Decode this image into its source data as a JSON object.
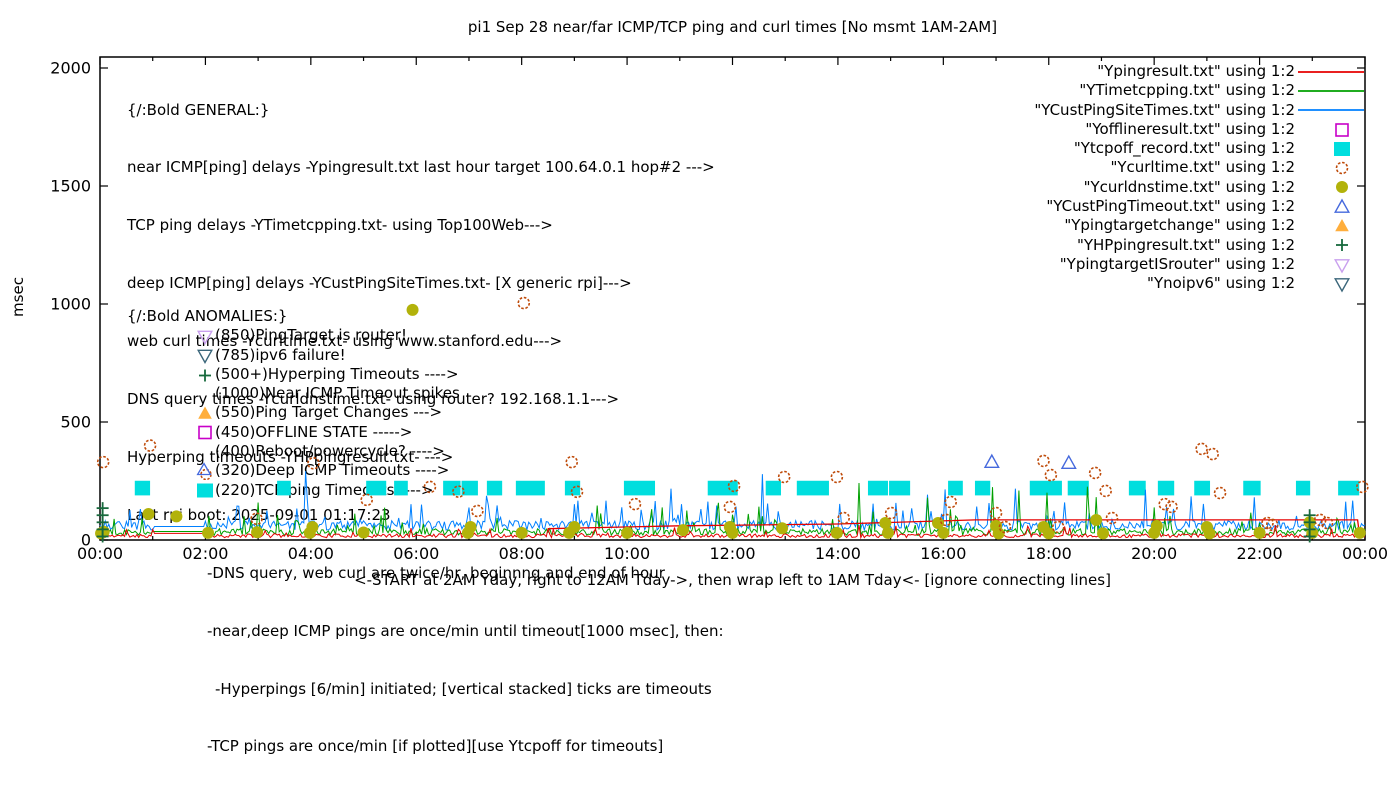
{
  "title": "pi1 Sep 28  near/far ICMP/TCP ping and curl times [No msmt 1AM-2AM]",
  "ylabel": "msec",
  "xlabel": "<-START at 2AM Yday, right to 12AM Tday->, then wrap left to 1AM Tday<- [ignore connecting lines]",
  "colors": {
    "red": "#e60000",
    "green": "#00a000",
    "blue": "#0080ff",
    "magenta": "#c800c8",
    "cyan": "#00dede",
    "burnt_orange": "#bf4b0a",
    "olive": "#b2b20a",
    "royal_blue": "#4569dd",
    "amber": "#ffae3c",
    "dark_green": "#17693c",
    "violet": "#c9a0ee",
    "slate_teal": "#3a667a"
  },
  "legend": {
    "items": [
      {
        "label": "\"Ypingresult.txt\" using 1:2",
        "marker": "line",
        "color": "#e60000"
      },
      {
        "label": "\"YTimetcpping.txt\" using 1:2",
        "marker": "line",
        "color": "#00a000"
      },
      {
        "label": "\"YCustPingSiteTimes.txt\" using 1:2",
        "marker": "line",
        "color": "#0080ff"
      },
      {
        "label": "\"Yofflineresult.txt\" using 1:2",
        "marker": "square-open",
        "color": "#c800c8"
      },
      {
        "label": "\"Ytcpoff_record.txt\" using 1:2",
        "marker": "square-filled",
        "color": "#00dede"
      },
      {
        "label": "\"Ycurltime.txt\" using 1:2",
        "marker": "circle-open",
        "color": "#bf4b0a"
      },
      {
        "label": "\"Ycurldnstime.txt\" using 1:2",
        "marker": "circle-filled",
        "color": "#b2b20a"
      },
      {
        "label": "\"YCustPingTimeout.txt\" using 1:2",
        "marker": "triangle-up-open",
        "color": "#4569dd"
      },
      {
        "label": "\"Ypingtargetchange\" using 1:2",
        "marker": "triangle-up-filled",
        "color": "#ffae3c"
      },
      {
        "label": "\"YHPpingresult.txt\" using 1:2",
        "marker": "plus",
        "color": "#17693c"
      },
      {
        "label": "\"YpingtargetISrouter\" using 1:2",
        "marker": "triangle-down-open",
        "color": "#c9a0ee"
      },
      {
        "label": "\"Ynoipv6\" using 1:2",
        "marker": "triangle-down-open",
        "color": "#3a667a"
      }
    ]
  },
  "annotations": {
    "general": {
      "lines": [
        {
          "text": "{/:Bold GENERAL:}",
          "indent": 0
        },
        {
          "text": "near ICMP[ping] delays -Ypingresult.txt last hour target 100.64.0.1 hop#2 --->",
          "indent": 0
        },
        {
          "text": "TCP ping delays -YTimetcpping.txt- using Top100Web--->",
          "indent": 0
        },
        {
          "text": "deep ICMP[ping] delays -YCustPingSiteTimes.txt- [X generic rpi]--->",
          "indent": 0
        },
        {
          "text": "web curl times -Ycurltime.txt- using www.stanford.edu--->",
          "indent": 0
        },
        {
          "text": "DNS query times -Ycurldnstime.txt- using router? 192.168.1.1--->",
          "indent": 0
        },
        {
          "text": "Hyperping timeouts -YHPpingresult.txt- --->",
          "indent": 0
        },
        {
          "text": "Last rpi boot: 2025-09-01 01:17:23",
          "indent": 0
        },
        {
          "text": "-DNS query, web curl are twice/hr, beginnng and end of hour",
          "indent": 1
        },
        {
          "text": "-near,deep ICMP pings are once/min until timeout[1000 msec], then:",
          "indent": 1
        },
        {
          "text": "-Hyperpings [6/min] initiated; [vertical stacked] ticks are timeouts",
          "indent": 2
        },
        {
          "text": "-TCP pings are once/min [if plotted][use Ytcpoff for timeouts]",
          "indent": 1
        }
      ]
    },
    "anomalies": {
      "heading": "{/:Bold ANOMALIES:}",
      "items": [
        {
          "marker": "triangle-down-open",
          "color": "#c9a0ee",
          "text": "(850)PingTarget is router!"
        },
        {
          "marker": "triangle-down-open",
          "color": "#3a667a",
          "text": "(785)ipv6 failure!"
        },
        {
          "marker": "plus",
          "color": "#17693c",
          "text": "(500+)Hyperping Timeouts ---->"
        },
        {
          "marker": "none",
          "color": "#000000",
          "text": "(1000)Near ICMP Timeout spikes"
        },
        {
          "marker": "triangle-up-filled",
          "color": "#ffae3c",
          "text": "(550)Ping Target Changes --->"
        },
        {
          "marker": "square-open",
          "color": "#c800c8",
          "text": "(450)OFFLINE STATE ----->"
        },
        {
          "marker": "none",
          "color": "#000000",
          "text": "(400)Reboot/powercycle? ---->"
        },
        {
          "marker": "triangle-circle",
          "color": "#4569dd",
          "text": "(320)Deep ICMP Timeouts ---->"
        },
        {
          "marker": "square-filled",
          "color": "#00dede",
          "text": "(220)TCP ping Timeouts ---->"
        }
      ]
    }
  },
  "chart_data": {
    "type": "line",
    "title": "pi1 Sep 28  near/far ICMP/TCP ping and curl times [No msmt 1AM-2AM]",
    "xlabel": "<-START at 2AM Yday, right to 12AM Tday->, then wrap left to 1AM Tday<- [ignore connecting lines]",
    "ylabel": "msec",
    "x_axis": {
      "tick_labels": [
        "00:00",
        "02:00",
        "04:00",
        "06:00",
        "08:00",
        "10:00",
        "12:00",
        "14:00",
        "16:00",
        "18:00",
        "20:00",
        "22:00",
        "00:00"
      ],
      "tick_hours": [
        0,
        2,
        4,
        6,
        8,
        10,
        12,
        14,
        16,
        18,
        20,
        22,
        24
      ],
      "minor_every_hours": 1,
      "lim_hours": [
        0,
        24
      ]
    },
    "y_axis": {
      "ticks": [
        0,
        500,
        1000,
        1500,
        2000
      ],
      "lim": [
        0,
        2000
      ],
      "label": "msec"
    },
    "grid": false,
    "legend_position": "top-right-inside",
    "gap_no_measurement_hours": [
      1,
      2
    ],
    "series": [
      {
        "name": "Ytcpoff_record.txt",
        "kind": "rects",
        "color": "#00dede",
        "value": 220,
        "half_height_msec": 31,
        "segments": [
          [
            0.66,
            0.95
          ],
          [
            3.36,
            3.62
          ],
          [
            5.05,
            5.43
          ],
          [
            5.58,
            5.84
          ],
          [
            6.51,
            6.84
          ],
          [
            6.86,
            7.17
          ],
          [
            7.34,
            7.63
          ],
          [
            7.89,
            8.44
          ],
          [
            8.82,
            9.11
          ],
          [
            9.94,
            10.53
          ],
          [
            11.53,
            12.1
          ],
          [
            12.63,
            12.92
          ],
          [
            13.22,
            13.83
          ],
          [
            14.57,
            14.95
          ],
          [
            14.97,
            15.37
          ],
          [
            16.09,
            16.37
          ],
          [
            16.6,
            16.89
          ],
          [
            17.64,
            18.25
          ],
          [
            18.36,
            18.76
          ],
          [
            19.52,
            19.84
          ],
          [
            20.07,
            20.38
          ],
          [
            20.76,
            21.06
          ],
          [
            21.69,
            22.02
          ],
          [
            22.69,
            22.96
          ],
          [
            23.49,
            23.89
          ]
        ]
      },
      {
        "name": "YCustPingSiteTimes.txt",
        "kind": "noise",
        "color": "#0080ff",
        "base": 42,
        "jitter": 40,
        "spike_p": 0.12,
        "spike_max": 110,
        "rare_p": 0.01,
        "rare_max": 170,
        "gap_value": 57,
        "seed": 33
      },
      {
        "name": "YTimetcpping.txt",
        "kind": "noise",
        "color": "#00a000",
        "base": 20,
        "jitter": 28,
        "spike_p": 0.1,
        "spike_max": 110,
        "rare_p": 0.012,
        "rare_max": 210,
        "gap_value": 36,
        "seed": 22
      },
      {
        "name": "Ypingresult.txt",
        "kind": "noise",
        "color": "#e60000",
        "base": 10,
        "jitter": 16,
        "spike_p": 0.07,
        "spike_max": 40,
        "rare_p": 0.0,
        "rare_max": 0,
        "gap_value": 28,
        "seed": 11
      },
      {
        "name": "Ypingresult.txt-lasthour-step",
        "kind": "line",
        "color": "#e60000",
        "points": [
          [
            8.5,
            48
          ],
          [
            11.0,
            60
          ],
          [
            14.0,
            68
          ],
          [
            16.6,
            85
          ],
          [
            23.86,
            85
          ],
          [
            23.9,
            15
          ]
        ]
      },
      {
        "name": "Ycurldnstime.txt",
        "kind": "scatter",
        "marker": "circle-filled",
        "color": "#b2b20a",
        "points": [
          [
            0.02,
            28
          ],
          [
            0.07,
            35
          ],
          [
            0.92,
            110
          ],
          [
            1.45,
            100
          ],
          [
            2.05,
            30
          ],
          [
            2.98,
            33
          ],
          [
            3.98,
            30
          ],
          [
            4.03,
            55
          ],
          [
            5.0,
            32
          ],
          [
            5.93,
            975
          ],
          [
            6.98,
            30
          ],
          [
            7.03,
            55
          ],
          [
            8.0,
            30
          ],
          [
            8.9,
            30
          ],
          [
            9.0,
            55
          ],
          [
            10.0,
            30
          ],
          [
            11.06,
            42
          ],
          [
            11.95,
            55
          ],
          [
            12.0,
            30
          ],
          [
            12.94,
            50
          ],
          [
            13.98,
            30
          ],
          [
            14.9,
            72
          ],
          [
            14.95,
            30
          ],
          [
            15.9,
            72
          ],
          [
            16.0,
            30
          ],
          [
            17.0,
            60
          ],
          [
            17.05,
            28
          ],
          [
            17.9,
            55
          ],
          [
            18.0,
            28
          ],
          [
            18.9,
            85
          ],
          [
            19.03,
            28
          ],
          [
            20.0,
            30
          ],
          [
            20.05,
            60
          ],
          [
            21.0,
            55
          ],
          [
            21.05,
            28
          ],
          [
            22.0,
            30
          ],
          [
            22.95,
            75
          ],
          [
            23.0,
            30
          ],
          [
            23.9,
            30
          ]
        ]
      },
      {
        "name": "Ycurltime.txt",
        "kind": "scatter",
        "marker": "circle-open",
        "color": "#bf4b0a",
        "points": [
          [
            0.06,
            330
          ],
          [
            0.95,
            400
          ],
          [
            2.97,
            90
          ],
          [
            4.05,
            325
          ],
          [
            5.06,
            170
          ],
          [
            6.26,
            225
          ],
          [
            6.8,
            205
          ],
          [
            7.16,
            123
          ],
          [
            8.04,
            1004
          ],
          [
            8.95,
            330
          ],
          [
            9.05,
            204
          ],
          [
            10.15,
            152
          ],
          [
            11.95,
            140
          ],
          [
            12.03,
            229
          ],
          [
            12.98,
            267
          ],
          [
            13.98,
            267
          ],
          [
            14.11,
            93
          ],
          [
            15.01,
            114
          ],
          [
            16.05,
            85
          ],
          [
            16.14,
            161
          ],
          [
            17.0,
            114
          ],
          [
            17.17,
            55
          ],
          [
            17.9,
            335
          ],
          [
            18.04,
            275
          ],
          [
            18.18,
            55
          ],
          [
            18.88,
            284
          ],
          [
            19.08,
            208
          ],
          [
            19.2,
            93
          ],
          [
            20.2,
            152
          ],
          [
            20.33,
            140
          ],
          [
            20.9,
            386
          ],
          [
            21.11,
            364
          ],
          [
            21.25,
            199
          ],
          [
            22.15,
            72
          ],
          [
            22.24,
            64
          ],
          [
            23.15,
            85
          ],
          [
            23.28,
            72
          ],
          [
            23.95,
            225
          ]
        ]
      },
      {
        "name": "YCustPingTimeout.txt",
        "kind": "scatter",
        "marker": "triangle-up-open",
        "color": "#4569dd",
        "points": [
          [
            16.92,
            330
          ],
          [
            18.38,
            326
          ]
        ]
      },
      {
        "name": "YHPpingresult.txt",
        "kind": "scatter",
        "marker": "plus",
        "color": "#17693c",
        "points": [
          [
            0.05,
            15
          ],
          [
            0.05,
            45
          ],
          [
            0.05,
            75
          ],
          [
            0.05,
            105
          ],
          [
            0.05,
            135
          ],
          [
            22.95,
            15
          ],
          [
            22.95,
            45
          ],
          [
            22.95,
            75
          ],
          [
            22.95,
            105
          ]
        ]
      },
      {
        "name": "Yofflineresult.txt",
        "kind": "scatter",
        "marker": "square-open",
        "color": "#c800c8",
        "points": []
      },
      {
        "name": "Ypingtargetchange",
        "kind": "scatter",
        "marker": "triangle-up-filled",
        "color": "#ffae3c",
        "points": []
      },
      {
        "name": "YpingtargetISrouter",
        "kind": "scatter",
        "marker": "triangle-down-open",
        "color": "#c9a0ee",
        "points": []
      },
      {
        "name": "Ynoipv6",
        "kind": "scatter",
        "marker": "triangle-down-open",
        "color": "#3a667a",
        "points": []
      }
    ]
  }
}
